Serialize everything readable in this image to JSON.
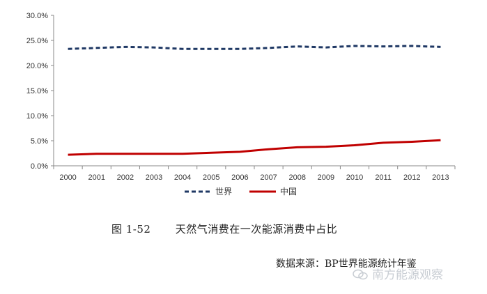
{
  "chart_data": {
    "type": "line",
    "categories": [
      "2000",
      "2001",
      "2002",
      "2003",
      "2004",
      "2005",
      "2006",
      "2007",
      "2008",
      "2009",
      "2010",
      "2011",
      "2012",
      "2013"
    ],
    "series": [
      {
        "name": "世界",
        "values": [
          23.3,
          23.5,
          23.7,
          23.6,
          23.3,
          23.3,
          23.3,
          23.5,
          23.8,
          23.6,
          23.9,
          23.8,
          23.9,
          23.7
        ],
        "color": "#1f3864",
        "style": "dashed"
      },
      {
        "name": "中国",
        "values": [
          2.2,
          2.4,
          2.4,
          2.4,
          2.4,
          2.6,
          2.8,
          3.3,
          3.7,
          3.8,
          4.1,
          4.6,
          4.8,
          5.1
        ],
        "color": "#c00000",
        "style": "solid"
      }
    ],
    "yticks": [
      "0.0%",
      "5.0%",
      "10.0%",
      "15.0%",
      "20.0%",
      "25.0%",
      "30.0%"
    ],
    "ylim": [
      0,
      30
    ],
    "grid": false,
    "legend": "bottom"
  },
  "caption": {
    "number": "图 1-52",
    "title": "天然气消费在一次能源消费中占比"
  },
  "source": "数据来源：BP世界能源统计年鉴",
  "watermark": "南方能源观察"
}
